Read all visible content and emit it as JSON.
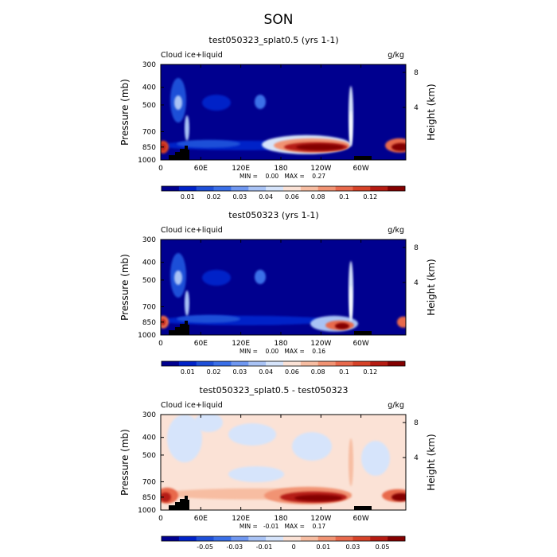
{
  "page_title": "SON",
  "chart_data": [
    {
      "type": "heatmap",
      "title": "test050323_splat0.5 (yrs 1-1)",
      "left_label": "Cloud ice+liquid",
      "right_label": "g/kg",
      "ylabel": "Pressure (mb)",
      "ylabel_right": "Height (km)",
      "x_ticks": [
        "0",
        "60E",
        "120E",
        "180",
        "120W",
        "60W"
      ],
      "y_ticks": [
        "300",
        "400",
        "500",
        "700",
        "850",
        "1000"
      ],
      "y_right_ticks": [
        "8",
        "4"
      ],
      "stats": "MIN =    0.00   MAX =    0.27",
      "min": 0.0,
      "max": 0.27,
      "colorbar_labels": [
        "0.01",
        "0.02",
        "0.03",
        "0.04",
        "0.06",
        "0.08",
        "0.1",
        "0.12"
      ],
      "colors": [
        "#00008f",
        "#0022c8",
        "#1e4fd8",
        "#3a6fe8",
        "#6f97f0",
        "#a9c3f5",
        "#d6e4fb",
        "#fbe2d6",
        "#f7bda2",
        "#f19373",
        "#e8694c",
        "#d64228",
        "#b51b12",
        "#840000"
      ]
    },
    {
      "type": "heatmap",
      "title": "test050323 (yrs 1-1)",
      "left_label": "Cloud ice+liquid",
      "right_label": "g/kg",
      "ylabel": "Pressure (mb)",
      "ylabel_right": "Height (km)",
      "x_ticks": [
        "0",
        "60E",
        "120E",
        "180",
        "120W",
        "60W"
      ],
      "y_ticks": [
        "300",
        "400",
        "500",
        "700",
        "850",
        "1000"
      ],
      "y_right_ticks": [
        "8",
        "4"
      ],
      "stats": "MIN =    0.00   MAX =    0.16",
      "min": 0.0,
      "max": 0.16,
      "colorbar_labels": [
        "0.01",
        "0.02",
        "0.03",
        "0.04",
        "0.06",
        "0.08",
        "0.1",
        "0.12"
      ],
      "colors": [
        "#00008f",
        "#0022c8",
        "#1e4fd8",
        "#3a6fe8",
        "#6f97f0",
        "#a9c3f5",
        "#d6e4fb",
        "#fbe2d6",
        "#f7bda2",
        "#f19373",
        "#e8694c",
        "#d64228",
        "#b51b12",
        "#840000"
      ]
    },
    {
      "type": "heatmap",
      "title": "test050323_splat0.5 - test050323",
      "left_label": "Cloud ice+liquid",
      "right_label": "g/kg",
      "ylabel": "Pressure (mb)",
      "ylabel_right": "Height (km)",
      "x_ticks": [
        "0",
        "60E",
        "120E",
        "180",
        "120W",
        "60W"
      ],
      "y_ticks": [
        "300",
        "400",
        "500",
        "700",
        "850",
        "1000"
      ],
      "y_right_ticks": [
        "8",
        "4"
      ],
      "stats": "MIN =   -0.01   MAX =    0.17",
      "min": -0.01,
      "max": 0.17,
      "colorbar_labels": [
        "-0.05",
        "-0.03",
        "-0.01",
        "0",
        "0.01",
        "0.03",
        "0.05"
      ],
      "colors": [
        "#00008f",
        "#0022c8",
        "#1e4fd8",
        "#3a6fe8",
        "#6f97f0",
        "#a9c3f5",
        "#d6e4fb",
        "#fbe2d6",
        "#f7bda2",
        "#f19373",
        "#e8694c",
        "#d64228",
        "#b51b12",
        "#840000"
      ]
    }
  ]
}
